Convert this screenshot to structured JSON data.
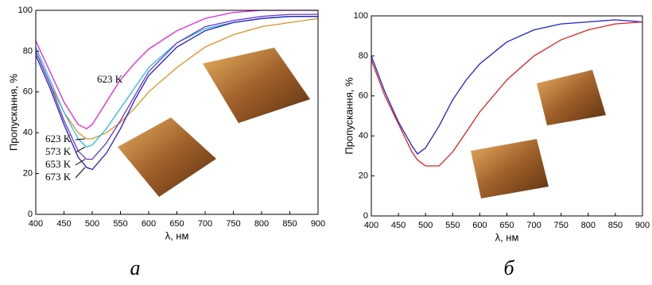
{
  "chart_data": [
    {
      "type": "line",
      "xlabel": "λ, нм",
      "ylabel": "Пропускання, %",
      "panel_label": "а",
      "annotation": "623 K",
      "xlim": [
        400,
        900
      ],
      "xticks": [
        400,
        450,
        500,
        550,
        600,
        650,
        700,
        750,
        800,
        850,
        900
      ],
      "ylim": [
        0,
        100
      ],
      "yticks": [
        0,
        20,
        40,
        60,
        80,
        100
      ],
      "x": [
        400,
        425,
        450,
        475,
        490,
        500,
        525,
        550,
        575,
        600,
        650,
        700,
        750,
        800,
        850,
        900
      ],
      "series": [
        {
          "color": "#e020e0",
          "values": [
            85,
            70,
            55,
            44,
            42,
            44,
            55,
            66,
            74,
            81,
            90,
            96,
            99,
            100,
            100,
            100
          ]
        },
        {
          "name": "623 K",
          "color": "#e09020",
          "values": [
            80,
            64,
            50,
            40,
            37,
            37,
            40,
            45,
            52,
            60,
            72,
            82,
            88,
            92,
            94,
            96
          ]
        },
        {
          "name": "573 K",
          "color": "#20c0e0",
          "values": [
            82,
            66,
            50,
            37,
            33,
            34,
            42,
            52,
            62,
            72,
            84,
            91,
            94,
            96,
            97,
            97
          ]
        },
        {
          "name": "653 K",
          "color": "#7030d0",
          "values": [
            80,
            64,
            46,
            31,
            27,
            27,
            35,
            46,
            58,
            70,
            84,
            92,
            95,
            97,
            98,
            98
          ]
        },
        {
          "name": "673 K",
          "color": "#2020c0",
          "values": [
            78,
            62,
            44,
            28,
            23,
            22,
            30,
            42,
            56,
            68,
            82,
            90,
            94,
            96,
            97,
            97
          ]
        }
      ]
    },
    {
      "type": "line",
      "xlabel": "λ, нм",
      "ylabel": "Пропускання, %",
      "panel_label": "б",
      "xlim": [
        400,
        900
      ],
      "xticks": [
        400,
        450,
        500,
        550,
        600,
        650,
        700,
        750,
        800,
        850,
        900
      ],
      "ylim": [
        0,
        100
      ],
      "yticks": [
        0,
        20,
        40,
        60,
        80,
        100
      ],
      "x": [
        400,
        425,
        450,
        475,
        485,
        500,
        525,
        550,
        575,
        600,
        650,
        700,
        750,
        800,
        850,
        900
      ],
      "series": [
        {
          "color": "#2020d0",
          "values": [
            80,
            62,
            47,
            35,
            31,
            34,
            45,
            58,
            68,
            76,
            87,
            93,
            96,
            97,
            98,
            97
          ]
        },
        {
          "color": "#e02020",
          "values": [
            78,
            60,
            46,
            32,
            28,
            25,
            25,
            32,
            42,
            52,
            68,
            80,
            88,
            93,
            96,
            97
          ]
        }
      ]
    }
  ]
}
